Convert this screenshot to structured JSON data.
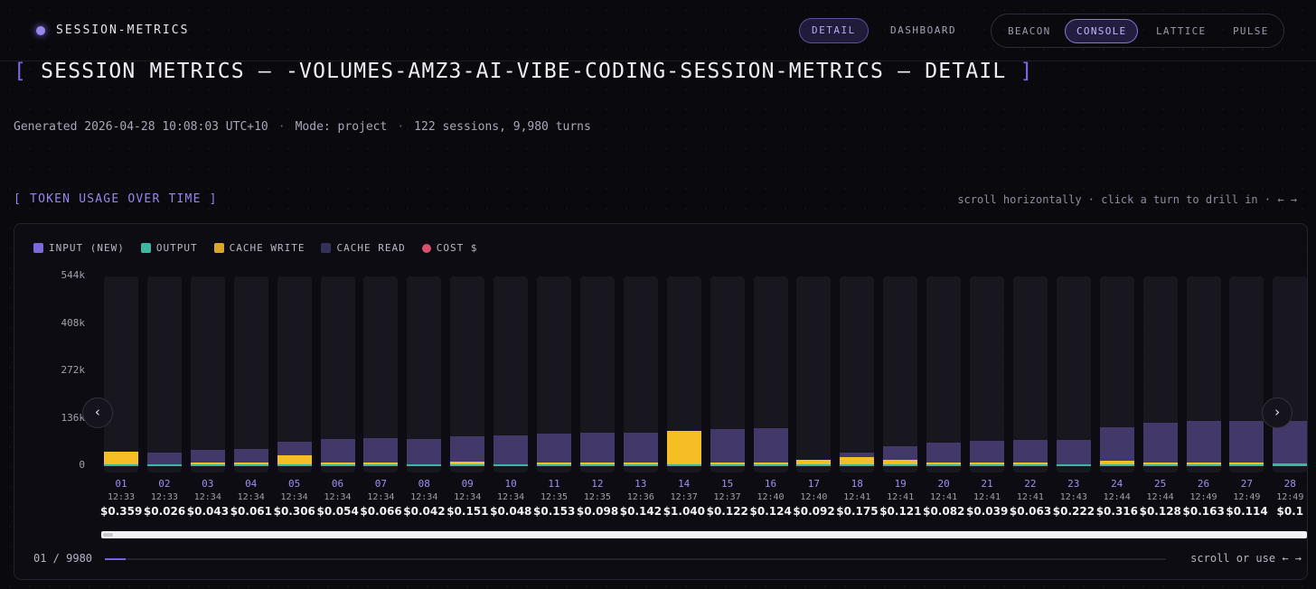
{
  "brand": "SESSION-METRICS",
  "view_tabs": [
    {
      "label": "DETAIL",
      "active": true
    },
    {
      "label": "DASHBOARD",
      "active": false
    }
  ],
  "theme_tabs": [
    {
      "label": "BEACON",
      "active": false
    },
    {
      "label": "CONSOLE",
      "active": true
    },
    {
      "label": "LATTICE",
      "active": false
    },
    {
      "label": "PULSE",
      "active": false
    }
  ],
  "page_title": {
    "open_bracket": "[",
    "text": "SESSION METRICS — -VOLUMES-AMZ3-AI-VIBE-CODING-SESSION-METRICS — DETAIL",
    "close_bracket": "]"
  },
  "meta": {
    "generated": "Generated 2026-04-28 10:08:03 UTC+10",
    "separator": "·",
    "mode": "Mode: project",
    "counts": "122 sessions, 9,980 turns"
  },
  "section": {
    "title": "[ TOKEN USAGE OVER TIME ]",
    "hint": "scroll horizontally · click a turn to drill in · ← →"
  },
  "legend": [
    {
      "label": "INPUT (NEW)",
      "color": "#7c68dd",
      "shape": "square"
    },
    {
      "label": "OUTPUT",
      "color": "#3bb89d",
      "shape": "square"
    },
    {
      "label": "CACHE WRITE",
      "color": "#d9a628",
      "shape": "square"
    },
    {
      "label": "CACHE READ",
      "color": "#35305a",
      "shape": "square"
    },
    {
      "label": "COST $",
      "color": "#d9506a",
      "shape": "circle"
    }
  ],
  "nav": {
    "prev_icon": "‹",
    "next_icon": "›"
  },
  "footer": {
    "counter": "01 / 9980",
    "progress": 0.02,
    "scroll_hint": "scroll or use ← →"
  },
  "chart_data": {
    "type": "bar",
    "stacked": true,
    "y_axis_ticks": [
      "544k",
      "408k",
      "272k",
      "136k",
      "0"
    ],
    "ylim": [
      0,
      544000
    ],
    "series_order": [
      "cache_read",
      "cache_write",
      "output",
      "input_new"
    ],
    "categories": [
      "01",
      "02",
      "03",
      "04",
      "05",
      "06",
      "07",
      "08",
      "09",
      "10",
      "11",
      "12",
      "13",
      "14",
      "15",
      "16",
      "17",
      "18",
      "19",
      "20",
      "21",
      "22",
      "23",
      "24",
      "25",
      "26",
      "27",
      "28"
    ],
    "times": [
      "12:33",
      "12:33",
      "12:34",
      "12:34",
      "12:34",
      "12:34",
      "12:34",
      "12:34",
      "12:34",
      "12:34",
      "12:35",
      "12:35",
      "12:36",
      "12:37",
      "12:37",
      "12:40",
      "12:40",
      "12:41",
      "12:41",
      "12:41",
      "12:41",
      "12:41",
      "12:43",
      "12:44",
      "12:44",
      "12:49",
      "12:49",
      "12:49"
    ],
    "costs": [
      "$0.359",
      "$0.026",
      "$0.043",
      "$0.061",
      "$0.306",
      "$0.054",
      "$0.066",
      "$0.042",
      "$0.151",
      "$0.048",
      "$0.153",
      "$0.098",
      "$0.142",
      "$1.040",
      "$0.122",
      "$0.124",
      "$0.092",
      "$0.175",
      "$0.121",
      "$0.082",
      "$0.039",
      "$0.063",
      "$0.222",
      "$0.316",
      "$0.128",
      "$0.163",
      "$0.114",
      "$0.1"
    ],
    "series": [
      {
        "name": "CACHE READ",
        "key": "cache_read",
        "color": "#43386a",
        "values": [
          0,
          34000,
          36000,
          38000,
          40000,
          68000,
          70000,
          72000,
          72000,
          84000,
          84000,
          86000,
          86000,
          0,
          96000,
          99000,
          0,
          12000,
          40000,
          56000,
          62000,
          64000,
          68000,
          96000,
          114000,
          120000,
          120000,
          122000
        ]
      },
      {
        "name": "CACHE WRITE",
        "key": "cache_write",
        "color": "#f5be24",
        "values": [
          35000,
          0,
          2000,
          2000,
          26000,
          2000,
          2000,
          0,
          8000,
          0,
          2000,
          3000,
          2000,
          95000,
          3000,
          2000,
          12000,
          22000,
          12000,
          6000,
          2000,
          3000,
          0,
          10000,
          4000,
          2000,
          3000,
          0
        ]
      },
      {
        "name": "OUTPUT",
        "key": "output",
        "color": "#3bb89d",
        "values": [
          1500,
          1000,
          1000,
          1000,
          1500,
          1000,
          1000,
          1000,
          1500,
          1000,
          5000,
          1500,
          3000,
          1000,
          1000,
          1500,
          1000,
          1500,
          1500,
          1000,
          1000,
          1000,
          6000,
          6000,
          1000,
          5000,
          2000,
          8000
        ]
      },
      {
        "name": "INPUT (NEW)",
        "key": "input_new",
        "color": "#7c68dd",
        "values": [
          200,
          200,
          200,
          200,
          200,
          200,
          200,
          200,
          200,
          200,
          200,
          200,
          200,
          200,
          200,
          200,
          200,
          200,
          200,
          200,
          200,
          200,
          200,
          200,
          200,
          200,
          200,
          200
        ]
      }
    ]
  }
}
